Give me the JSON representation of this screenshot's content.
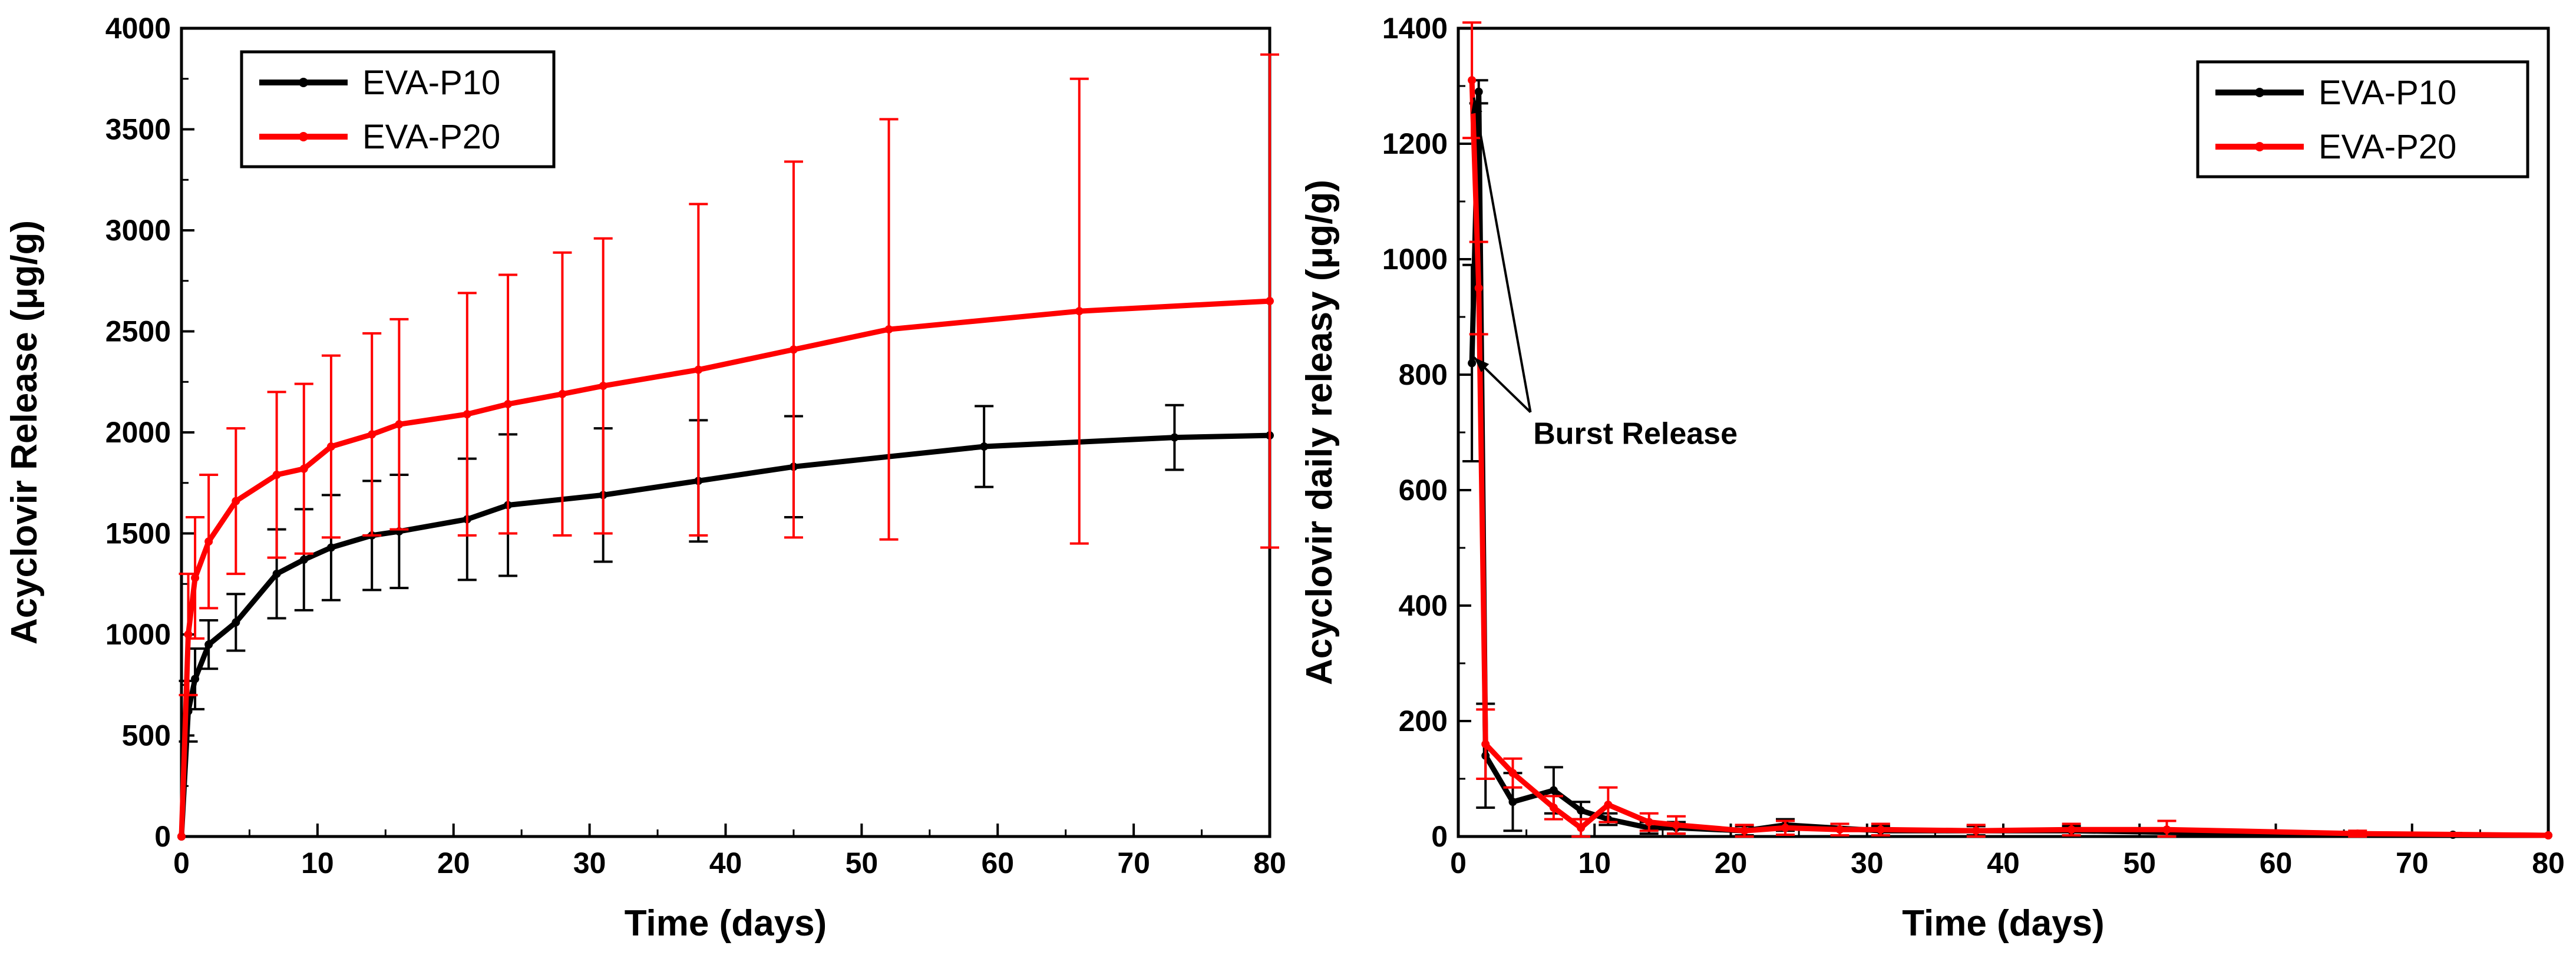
{
  "chart_data": [
    {
      "type": "line",
      "title": "",
      "xlabel": "Time (days)",
      "ylabel": "Acyclovir Release (μg/g)",
      "xlim": [
        0,
        80
      ],
      "ylim": [
        0,
        4000
      ],
      "xticks": [
        0,
        10,
        20,
        30,
        40,
        50,
        60,
        70,
        80
      ],
      "yticks": [
        0,
        500,
        1000,
        1500,
        2000,
        2500,
        3000,
        3500,
        4000
      ],
      "grid": false,
      "legend": "top-left",
      "series": [
        {
          "name": "EVA-P10",
          "color": "#000000",
          "x": [
            0,
            0.5,
            1,
            2,
            4,
            7,
            9,
            11,
            14,
            16,
            21,
            24,
            31,
            38,
            45,
            59,
            73,
            80
          ],
          "y": [
            0,
            620,
            780,
            950,
            1060,
            1300,
            1370,
            1430,
            1490,
            1510,
            1570,
            1640,
            1690,
            1760,
            1830,
            1930,
            1975,
            1985
          ],
          "err": [
            0,
            150,
            150,
            120,
            140,
            220,
            250,
            260,
            270,
            280,
            300,
            350,
            330,
            300,
            250,
            200,
            160,
            0
          ]
        },
        {
          "name": "EVA-P20",
          "color": "#ff0000",
          "x": [
            0,
            0.5,
            1,
            2,
            4,
            7,
            9,
            11,
            14,
            16,
            21,
            24,
            28,
            31,
            38,
            45,
            52,
            66,
            80
          ],
          "y": [
            0,
            1000,
            1280,
            1460,
            1660,
            1790,
            1820,
            1930,
            1990,
            2040,
            2090,
            2140,
            2190,
            2230,
            2310,
            2410,
            2510,
            2600,
            2650
          ],
          "err": [
            0,
            300,
            300,
            330,
            360,
            410,
            420,
            450,
            500,
            520,
            600,
            640,
            700,
            730,
            820,
            930,
            1040,
            1150,
            1220
          ]
        }
      ]
    },
    {
      "type": "line",
      "title": "",
      "xlabel": "Time (days)",
      "ylabel": "Acyclovir daily releasy (μg/g)",
      "xlim": [
        0,
        80
      ],
      "ylim": [
        0,
        1400
      ],
      "xticks": [
        0,
        10,
        20,
        30,
        40,
        50,
        60,
        70,
        80
      ],
      "yticks": [
        0,
        200,
        400,
        600,
        800,
        1000,
        1200,
        1400
      ],
      "grid": false,
      "legend": "top-right",
      "annotation": "Burst Release",
      "series": [
        {
          "name": "EVA-P10",
          "color": "#000000",
          "x": [
            1,
            1.5,
            2,
            4,
            7,
            9,
            11,
            14,
            16,
            21,
            24,
            31,
            38,
            45,
            59,
            73,
            80
          ],
          "y": [
            820,
            1290,
            140,
            60,
            80,
            45,
            30,
            15,
            15,
            10,
            20,
            10,
            10,
            10,
            5,
            3,
            2
          ],
          "err": [
            170,
            20,
            90,
            50,
            40,
            15,
            10,
            10,
            10,
            8,
            10,
            8,
            8,
            8,
            5,
            3,
            0
          ]
        },
        {
          "name": "EVA-P20",
          "color": "#ff0000",
          "x": [
            1,
            1.5,
            2,
            4,
            7,
            9,
            11,
            14,
            16,
            21,
            24,
            28,
            31,
            38,
            45,
            52,
            66,
            80
          ],
          "y": [
            1310,
            950,
            160,
            110,
            50,
            15,
            55,
            25,
            20,
            10,
            15,
            12,
            12,
            10,
            12,
            12,
            5,
            2
          ],
          "err": [
            100,
            80,
            60,
            25,
            20,
            15,
            30,
            15,
            15,
            10,
            12,
            10,
            10,
            10,
            10,
            15,
            5,
            0
          ]
        }
      ]
    }
  ]
}
